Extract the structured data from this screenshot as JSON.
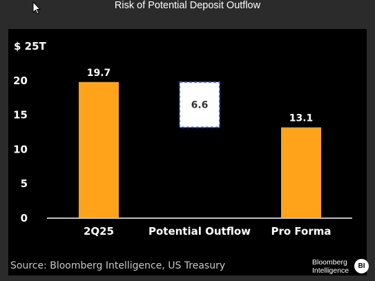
{
  "title": "Risk of Potential Deposit Outflow",
  "source": "Source: Bloomberg Intelligence, US Treasury",
  "logo": {
    "line1": "Bloomberg",
    "line2": "Intelligence",
    "badge": "BI"
  },
  "colors": {
    "bar": "#FFA31A",
    "outflow_fill": "#FFFFFF",
    "outflow_border": "#1F4FFF",
    "background": "#000000",
    "text": "#FFFFFF"
  },
  "chart_data": {
    "type": "bar",
    "subtype": "waterfall",
    "categories": [
      "2Q25",
      "Potential Outflow",
      "Pro Forma"
    ],
    "values": [
      19.7,
      6.6,
      13.1
    ],
    "value_labels": [
      "19.7",
      "6.6",
      "13.1"
    ],
    "floating_range": [
      13.1,
      19.7
    ],
    "y_unit_label": "$ 25T",
    "yticks": [
      0,
      5,
      10,
      15,
      20
    ],
    "ytick_labels": [
      "0",
      "5",
      "10",
      "15",
      "20",
      "$ 25T"
    ],
    "ylim": [
      0,
      25
    ],
    "grid": false,
    "legend": "none"
  }
}
